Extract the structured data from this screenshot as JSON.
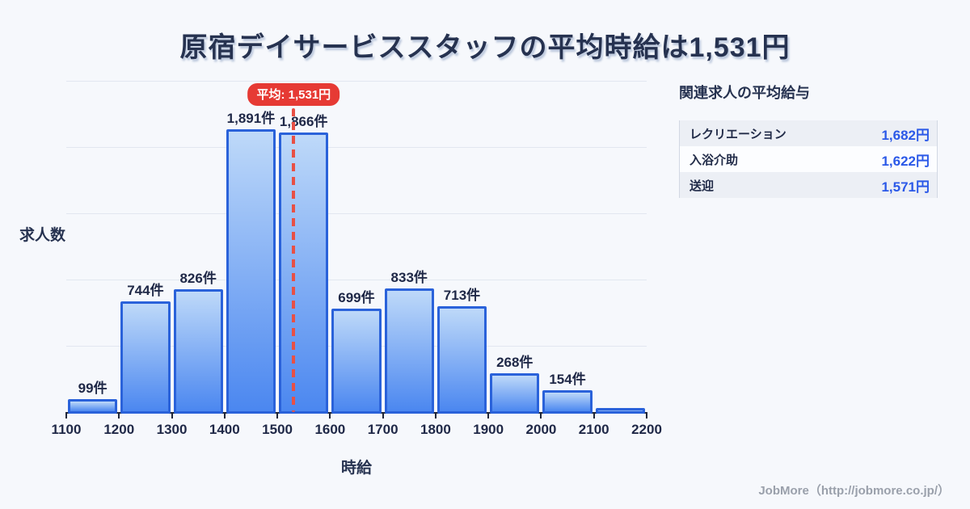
{
  "title": "原宿デイサービススタッフの平均時給は1,531円",
  "chart_data": {
    "type": "bar",
    "title": "原宿デイサービススタッフの平均時給は1,531円",
    "xlabel": "時給",
    "ylabel": "求人数",
    "ylim": [
      0,
      2200
    ],
    "grid": true,
    "gridline_count": 5,
    "x_ticks": [
      "1100",
      "1200",
      "1300",
      "1400",
      "1500",
      "1600",
      "1700",
      "1800",
      "1900",
      "2000",
      "2100",
      "2200"
    ],
    "bins": [
      {
        "range": "1100-1200",
        "value": 99,
        "label": "99件"
      },
      {
        "range": "1200-1300",
        "value": 744,
        "label": "744件"
      },
      {
        "range": "1300-1400",
        "value": 826,
        "label": "826件"
      },
      {
        "range": "1400-1500",
        "value": 1891,
        "label": "1,891件"
      },
      {
        "range": "1500-1600",
        "value": 1866,
        "label": "1,866件"
      },
      {
        "range": "1600-1700",
        "value": 699,
        "label": "699件"
      },
      {
        "range": "1700-1800",
        "value": 833,
        "label": "833件"
      },
      {
        "range": "1800-1900",
        "value": 713,
        "label": "713件"
      },
      {
        "range": "1900-2000",
        "value": 268,
        "label": "268件"
      },
      {
        "range": "2000-2100",
        "value": 154,
        "label": "154件"
      },
      {
        "range": "2100-2200",
        "value": 38,
        "label": ""
      }
    ],
    "average_line": {
      "x": 1531,
      "x_min": 1100,
      "x_max": 2200,
      "label": "平均: 1,531円"
    }
  },
  "side_panel": {
    "heading": "関連求人の平均給与",
    "rows": [
      {
        "label": "レクリエーション",
        "value": "1,682円"
      },
      {
        "label": "入浴介助",
        "value": "1,622円"
      },
      {
        "label": "送迎",
        "value": "1,571円"
      }
    ]
  },
  "footer": {
    "credit": "JobMore（http://jobmore.co.jp/）"
  },
  "colors": {
    "background": "#f6f8fc",
    "title_navy": "#263250",
    "bar_gradient_top": "#bed9f9",
    "bar_gradient_bottom": "#4b87f0",
    "bar_border": "#2a62da",
    "average_red": "#e63a34",
    "value_blue": "#2b59e8",
    "axis_dark": "#1f2639"
  }
}
